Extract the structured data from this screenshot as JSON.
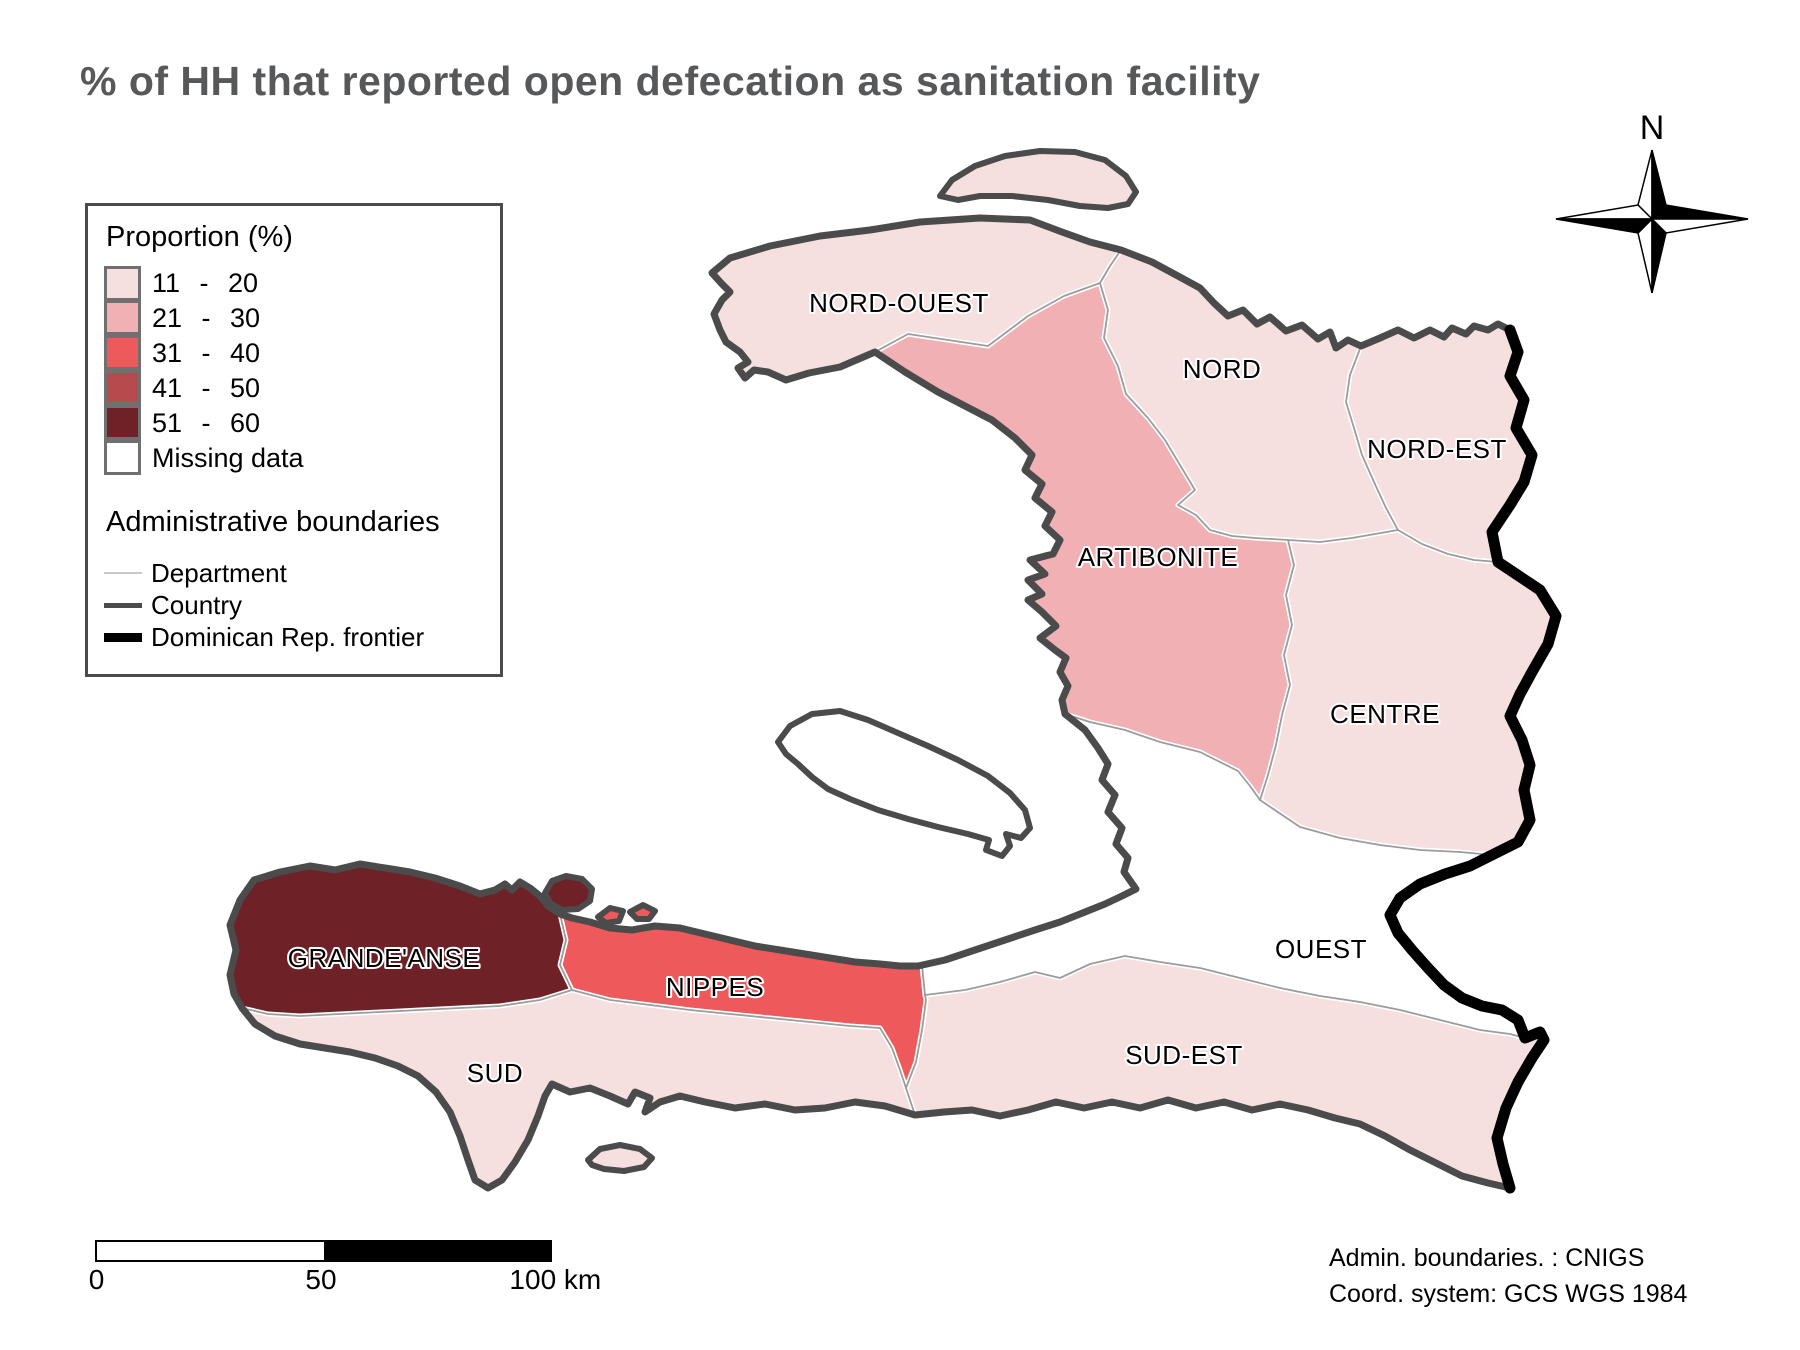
{
  "title": "% of HH that reported open defecation as sanitation facility",
  "legend": {
    "proportion_title": "Proportion (%)",
    "classes": [
      {
        "label": "11 - 20",
        "color": "#f5dfdf"
      },
      {
        "label": "21 - 30",
        "color": "#f1b1b4"
      },
      {
        "label": "31 - 40",
        "color": "#ee5a5c"
      },
      {
        "label": "41 - 50",
        "color": "#b64a4d"
      },
      {
        "label": "51 - 60",
        "color": "#6e2127"
      },
      {
        "label": "Missing data",
        "color": "#ffffff"
      }
    ],
    "boundaries_title": "Administrative boundaries",
    "boundaries": [
      {
        "label": "Department"
      },
      {
        "label": "Country"
      },
      {
        "label": "Dominican Rep. frontier"
      }
    ]
  },
  "compass": {
    "label": "N"
  },
  "scalebar": {
    "label_start": "0",
    "label_mid": "50",
    "label_end": "100 km"
  },
  "credits": {
    "line1": "Admin. boundaries. : CNIGS",
    "line2": "Coord. system: GCS WGS 1984"
  },
  "map_style": {
    "department_line": "#9c9c9c",
    "department_casing": "#ffffff",
    "country_line": "#4b4b4b",
    "frontier_line": "#000000"
  },
  "chart_data": {
    "type": "choropleth",
    "title": "% of HH that reported open defecation as sanitation facility",
    "unit": "percent of households",
    "classes": [
      "11 - 20",
      "21 - 30",
      "31 - 40",
      "41 - 50",
      "51 - 60",
      "Missing data"
    ],
    "legend_note": "Administrative boundaries: Department, Country, Dominican Rep. frontier",
    "regions": [
      {
        "name": "NORD-OUEST",
        "value_range": "11 - 20"
      },
      {
        "name": "NORD",
        "value_range": "11 - 20"
      },
      {
        "name": "NORD-EST",
        "value_range": "11 - 20"
      },
      {
        "name": "ARTIBONITE",
        "value_range": "21 - 30"
      },
      {
        "name": "CENTRE",
        "value_range": "11 - 20"
      },
      {
        "name": "OUEST",
        "value_range": "Missing data"
      },
      {
        "name": "SUD-EST",
        "value_range": "11 - 20"
      },
      {
        "name": "NIPPES",
        "value_range": "31 - 40"
      },
      {
        "name": "GRANDE'ANSE",
        "value_range": "51 - 60"
      },
      {
        "name": "SUD",
        "value_range": "11 - 20"
      }
    ]
  }
}
